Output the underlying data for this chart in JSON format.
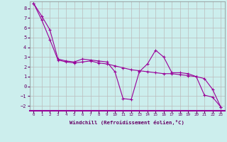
{
  "xlabel": "Windchill (Refroidissement éolien,°C)",
  "background_color": "#cceeed",
  "grid_color": "#bbbbbb",
  "line_color": "#990099",
  "x_hours": [
    0,
    1,
    2,
    3,
    4,
    5,
    6,
    7,
    8,
    9,
    10,
    11,
    12,
    13,
    14,
    15,
    16,
    17,
    18,
    19,
    20,
    21,
    22,
    23
  ],
  "series1": [
    8.5,
    7.2,
    5.8,
    2.8,
    2.6,
    2.5,
    2.8,
    2.7,
    2.6,
    2.5,
    1.5,
    -1.25,
    -1.35,
    1.5,
    2.3,
    3.7,
    3.0,
    1.4,
    1.4,
    1.3,
    1.0,
    -0.9,
    -1.1,
    -2.1
  ],
  "series2": [
    8.5,
    6.8,
    4.8,
    2.7,
    2.5,
    2.4,
    2.5,
    2.6,
    2.4,
    2.3,
    2.1,
    1.9,
    1.7,
    1.6,
    1.5,
    1.4,
    1.3,
    1.3,
    1.2,
    1.1,
    1.0,
    0.8,
    -0.3,
    -2.1
  ],
  "ylim": [
    -2.5,
    8.7
  ],
  "yticks": [
    -2,
    -1,
    0,
    1,
    2,
    3,
    4,
    5,
    6,
    7,
    8
  ],
  "xtick_labels": [
    "0",
    "1",
    "2",
    "3",
    "4",
    "5",
    "6",
    "7",
    "8",
    "9",
    "10",
    "11",
    "12",
    "13",
    "14",
    "15",
    "16",
    "17",
    "18",
    "19",
    "20",
    "21",
    "22",
    "23"
  ]
}
